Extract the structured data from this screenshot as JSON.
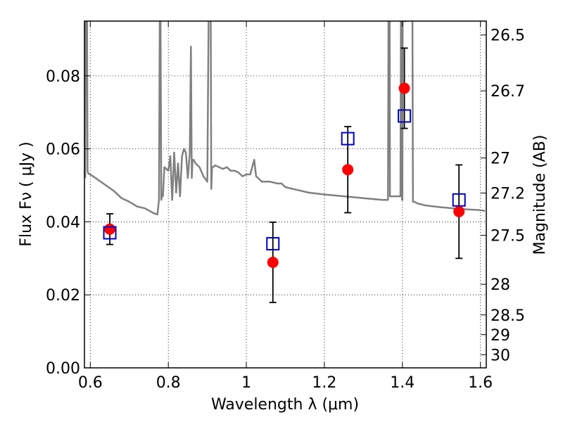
{
  "chart_data": {
    "type": "scatter",
    "xlabel": "Wavelength  λ (μm)",
    "ylabel": "Flux  Fν  ( μJy )",
    "y2label": "Magnitude (AB)",
    "xlim": [
      0.585,
      1.615
    ],
    "ylim": [
      0.0,
      0.095
    ],
    "grid": true,
    "x_ticks": [
      0.6,
      0.8,
      1.0,
      1.2,
      1.4,
      1.6
    ],
    "x_tick_labels": [
      "0.6",
      "0.8",
      "1",
      "1.2",
      "1.4",
      "1.6"
    ],
    "y_ticks": [
      0.0,
      0.02,
      0.04,
      0.06,
      0.08
    ],
    "y_tick_labels": [
      "0.00",
      "0.02",
      "0.04",
      "0.06",
      "0.08"
    ],
    "y2_ticks": [
      {
        "label": "26.5",
        "flux": 0.0912
      },
      {
        "label": "26.7",
        "flux": 0.0759
      },
      {
        "label": "27",
        "flux": 0.0575
      },
      {
        "label": "27.2",
        "flux": 0.0479
      },
      {
        "label": "27.5",
        "flux": 0.0363
      },
      {
        "label": "28",
        "flux": 0.0229
      },
      {
        "label": "28.5",
        "flux": 0.0145
      },
      {
        "label": "29",
        "flux": 0.0091
      },
      {
        "label": "30",
        "flux": 0.0036
      }
    ],
    "observed": {
      "name": "",
      "color": "#ff0000",
      "points": [
        {
          "x": 0.65,
          "y": 0.038,
          "err": 0.0042
        },
        {
          "x": 1.068,
          "y": 0.0289,
          "err": 0.011
        },
        {
          "x": 1.26,
          "y": 0.0543,
          "err": 0.0118
        },
        {
          "x": 1.405,
          "y": 0.0766,
          "err": 0.011
        },
        {
          "x": 1.545,
          "y": 0.0428,
          "err": 0.0128
        }
      ]
    },
    "model_points": {
      "name": "",
      "color": "#0000cc",
      "points": [
        {
          "x": 0.65,
          "y": 0.037
        },
        {
          "x": 1.068,
          "y": 0.034
        },
        {
          "x": 1.26,
          "y": 0.0628
        },
        {
          "x": 1.405,
          "y": 0.069
        },
        {
          "x": 1.545,
          "y": 0.046
        }
      ]
    },
    "sed": {
      "name": "",
      "color": "#808080",
      "x": [
        0.587,
        0.589,
        0.591,
        0.593,
        0.595,
        0.6,
        0.62,
        0.64,
        0.66,
        0.68,
        0.7,
        0.72,
        0.74,
        0.76,
        0.772,
        0.776,
        0.778,
        0.78,
        0.782,
        0.784,
        0.786,
        0.79,
        0.8,
        0.805,
        0.81,
        0.815,
        0.82,
        0.825,
        0.83,
        0.835,
        0.84,
        0.845,
        0.85,
        0.855,
        0.858,
        0.86,
        0.862,
        0.865,
        0.87,
        0.88,
        0.89,
        0.9,
        0.905,
        0.908,
        0.91,
        0.912,
        0.915,
        0.92,
        0.93,
        0.94,
        0.95,
        0.96,
        0.97,
        0.98,
        0.99,
        1.0,
        1.01,
        1.02,
        1.025,
        1.04,
        1.06,
        1.08,
        1.09,
        1.1,
        1.12,
        1.14,
        1.16,
        1.2,
        1.25,
        1.3,
        1.35,
        1.363,
        1.365,
        1.367,
        1.368,
        1.37,
        1.38,
        1.395,
        1.397,
        1.399,
        1.4,
        1.401,
        1.403,
        1.41,
        1.42,
        1.425,
        1.427,
        1.43,
        1.44,
        1.46,
        1.5,
        1.55,
        1.6,
        1.612
      ],
      "y": [
        0.052,
        0.12,
        0.12,
        0.054,
        0.0532,
        0.053,
        0.0515,
        0.05,
        0.0485,
        0.0465,
        0.0455,
        0.0442,
        0.0437,
        0.0425,
        0.042,
        0.046,
        0.095,
        0.095,
        0.046,
        0.048,
        0.047,
        0.055,
        0.054,
        0.058,
        0.046,
        0.059,
        0.048,
        0.056,
        0.047,
        0.058,
        0.06,
        0.059,
        0.052,
        0.059,
        0.088,
        0.052,
        0.057,
        0.057,
        0.056,
        0.055,
        0.0525,
        0.051,
        0.12,
        0.12,
        0.049,
        0.055,
        0.055,
        0.0555,
        0.055,
        0.0545,
        0.055,
        0.054,
        0.054,
        0.0535,
        0.0525,
        0.053,
        0.053,
        0.057,
        0.0525,
        0.051,
        0.051,
        0.0505,
        0.0505,
        0.0495,
        0.049,
        0.0485,
        0.048,
        0.0475,
        0.047,
        0.0465,
        0.046,
        0.046,
        0.12,
        0.12,
        0.047,
        0.047,
        0.047,
        0.047,
        0.12,
        0.046,
        0.046,
        0.12,
        0.095,
        0.095,
        0.12,
        0.12,
        0.0455,
        0.0455,
        0.045,
        0.0445,
        0.044,
        0.0435,
        0.0432,
        0.043
      ]
    }
  }
}
